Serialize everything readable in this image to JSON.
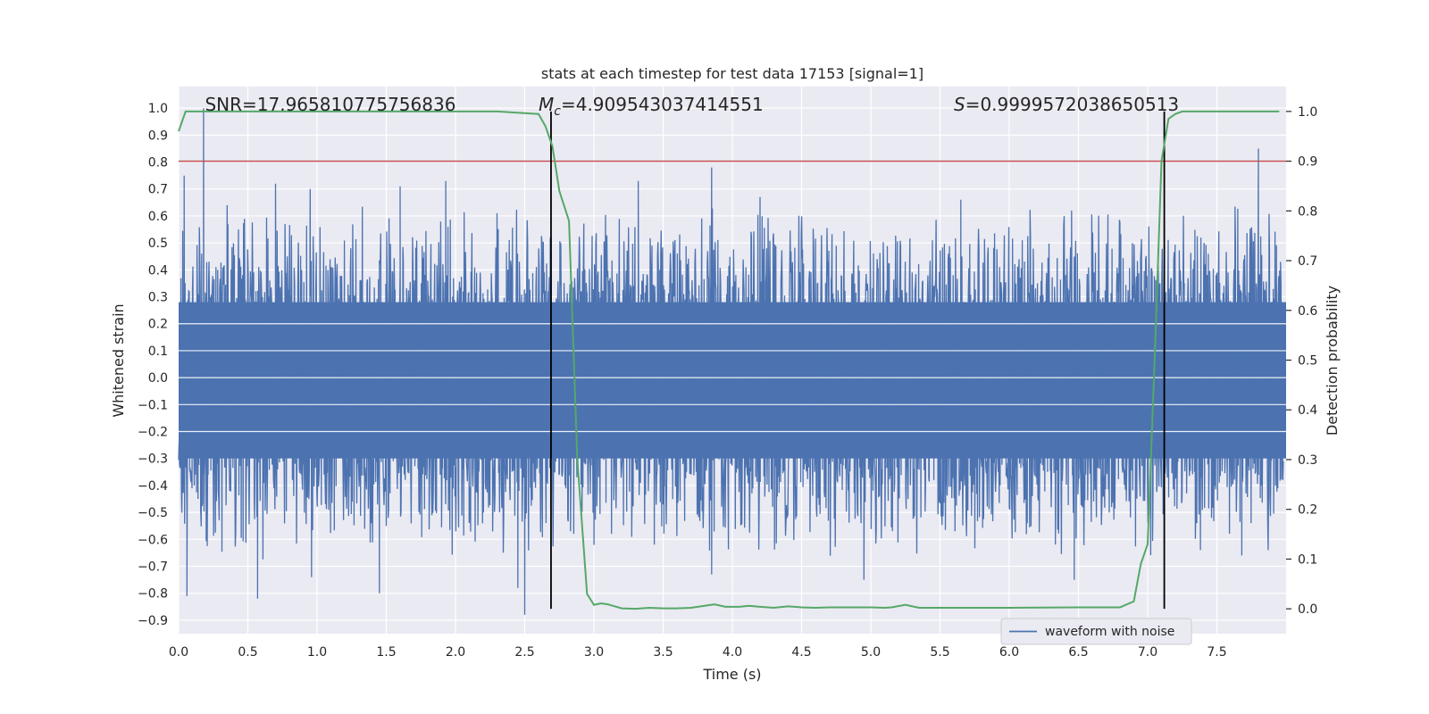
{
  "chart_data": {
    "type": "line",
    "title": "stats at each timestep for test data 17153 [signal=1]",
    "xlabel": "Time (s)",
    "ylabel": "Whitened strain",
    "y2label": "Detection probability",
    "xlim": [
      0.0,
      8.0
    ],
    "ylim": [
      -0.95,
      1.08
    ],
    "y2lim": [
      -0.05,
      1.05
    ],
    "x_ticks": [
      0.0,
      0.5,
      1.0,
      1.5,
      2.0,
      2.5,
      3.0,
      3.5,
      4.0,
      4.5,
      5.0,
      5.5,
      6.0,
      6.5,
      7.0,
      7.5
    ],
    "x_tick_labels": [
      "0.0",
      "0.5",
      "1.0",
      "1.5",
      "2.0",
      "2.5",
      "3.0",
      "3.5",
      "4.0",
      "4.5",
      "5.0",
      "5.5",
      "6.0",
      "6.5",
      "7.0",
      "7.5"
    ],
    "y_ticks": [
      -0.9,
      -0.8,
      -0.7,
      -0.6,
      -0.5,
      -0.4,
      -0.3,
      -0.2,
      -0.1,
      0.0,
      0.1,
      0.2,
      0.3,
      0.4,
      0.5,
      0.6,
      0.7,
      0.8,
      0.9,
      1.0
    ],
    "y_tick_labels": [
      "−0.9",
      "−0.8",
      "−0.7",
      "−0.6",
      "−0.5",
      "−0.4",
      "−0.3",
      "−0.2",
      "−0.1",
      "0.0",
      "0.1",
      "0.2",
      "0.3",
      "0.4",
      "0.5",
      "0.6",
      "0.7",
      "0.8",
      "0.9",
      "1.0"
    ],
    "y2_ticks": [
      0.0,
      0.1,
      0.2,
      0.3,
      0.4,
      0.5,
      0.6,
      0.7,
      0.8,
      0.9,
      1.0
    ],
    "y2_tick_labels": [
      "0.0",
      "0.1",
      "0.2",
      "0.3",
      "0.4",
      "0.5",
      "0.6",
      "0.7",
      "0.8",
      "0.9",
      "1.0"
    ],
    "grid": true,
    "legend_position": "lower-right",
    "series": [
      {
        "name": "waveform with noise",
        "axis": "left",
        "color": "#4c72b0",
        "style": "dense noise waveform",
        "band_upper": 0.28,
        "band_lower": -0.3,
        "spike_max": 1.0,
        "spike_min": -0.88,
        "peaks": [
          {
            "x": 0.18,
            "y": 1.0
          },
          {
            "x": 0.04,
            "y": 0.75
          },
          {
            "x": 0.35,
            "y": 0.64
          },
          {
            "x": 0.7,
            "y": 0.72
          },
          {
            "x": 0.95,
            "y": 0.7
          },
          {
            "x": 1.6,
            "y": 0.71
          },
          {
            "x": 1.93,
            "y": 0.73
          },
          {
            "x": 2.3,
            "y": 0.61
          },
          {
            "x": 3.32,
            "y": 0.73
          },
          {
            "x": 3.85,
            "y": 0.78
          },
          {
            "x": 4.2,
            "y": 0.67
          },
          {
            "x": 5.65,
            "y": 0.66
          },
          {
            "x": 6.45,
            "y": 0.62
          },
          {
            "x": 7.8,
            "y": 0.85
          }
        ],
        "troughs": [
          {
            "x": 0.06,
            "y": -0.81
          },
          {
            "x": 0.57,
            "y": -0.82
          },
          {
            "x": 0.96,
            "y": -0.74
          },
          {
            "x": 1.45,
            "y": -0.8
          },
          {
            "x": 2.45,
            "y": -0.78
          },
          {
            "x": 2.5,
            "y": -0.88
          },
          {
            "x": 3.85,
            "y": -0.73
          },
          {
            "x": 4.95,
            "y": -0.75
          },
          {
            "x": 6.47,
            "y": -0.75
          },
          {
            "x": 7.68,
            "y": -0.66
          }
        ]
      },
      {
        "name": "",
        "axis": "right",
        "color": "#55a868",
        "x": [
          0.0,
          0.05,
          0.1,
          0.5,
          1.0,
          1.5,
          2.0,
          2.3,
          2.6,
          2.65,
          2.7,
          2.75,
          2.82,
          2.88,
          2.95,
          3.0,
          3.05,
          3.1,
          3.2,
          3.3,
          3.4,
          3.5,
          3.6,
          3.7,
          3.8,
          3.87,
          3.95,
          4.05,
          4.12,
          4.2,
          4.3,
          4.4,
          4.45,
          4.5,
          4.6,
          4.7,
          4.8,
          4.9,
          5.0,
          5.1,
          5.15,
          5.25,
          5.35,
          5.45,
          5.5,
          6.0,
          6.5,
          6.8,
          6.9,
          6.95,
          7.0,
          7.05,
          7.1,
          7.15,
          7.2,
          7.25,
          7.5,
          7.95
        ],
        "y": [
          0.96,
          1.0,
          1.0,
          1.0,
          1.0,
          1.0,
          1.0,
          1.0,
          0.995,
          0.97,
          0.93,
          0.84,
          0.78,
          0.3,
          0.03,
          0.008,
          0.011,
          0.009,
          0.001,
          0.0,
          0.002,
          0.001,
          0.001,
          0.002,
          0.006,
          0.009,
          0.004,
          0.004,
          0.006,
          0.004,
          0.002,
          0.005,
          0.004,
          0.003,
          0.002,
          0.003,
          0.003,
          0.003,
          0.003,
          0.002,
          0.003,
          0.008,
          0.002,
          0.002,
          0.002,
          0.002,
          0.003,
          0.003,
          0.015,
          0.09,
          0.13,
          0.5,
          0.9,
          0.985,
          0.995,
          1.0,
          1.0,
          1.0
        ]
      }
    ],
    "threshold": {
      "axis": "right",
      "y": 0.9,
      "color": "#c44e52"
    },
    "vlines": [
      {
        "x": 2.69,
        "color": "#000000"
      },
      {
        "x": 7.12,
        "color": "#000000"
      }
    ],
    "annotations": [
      {
        "prefix": "SNR",
        "subscript": "",
        "text": "=17.965810775756836",
        "italic_prefix": false,
        "x": 0.19
      },
      {
        "prefix": "M",
        "subscript": "c",
        "text": "=4.909543037414551",
        "italic_prefix": true,
        "x": 2.6
      },
      {
        "prefix": "S",
        "subscript": "",
        "text": "=0.9999572038650513",
        "italic_prefix": true,
        "x": 5.6
      }
    ],
    "colors": {
      "axes_bg": "#eaeaf2",
      "grid": "#ffffff",
      "text": "#262626",
      "legend_bg": "#eaeaf2",
      "legend_border": "#cccccc"
    }
  }
}
